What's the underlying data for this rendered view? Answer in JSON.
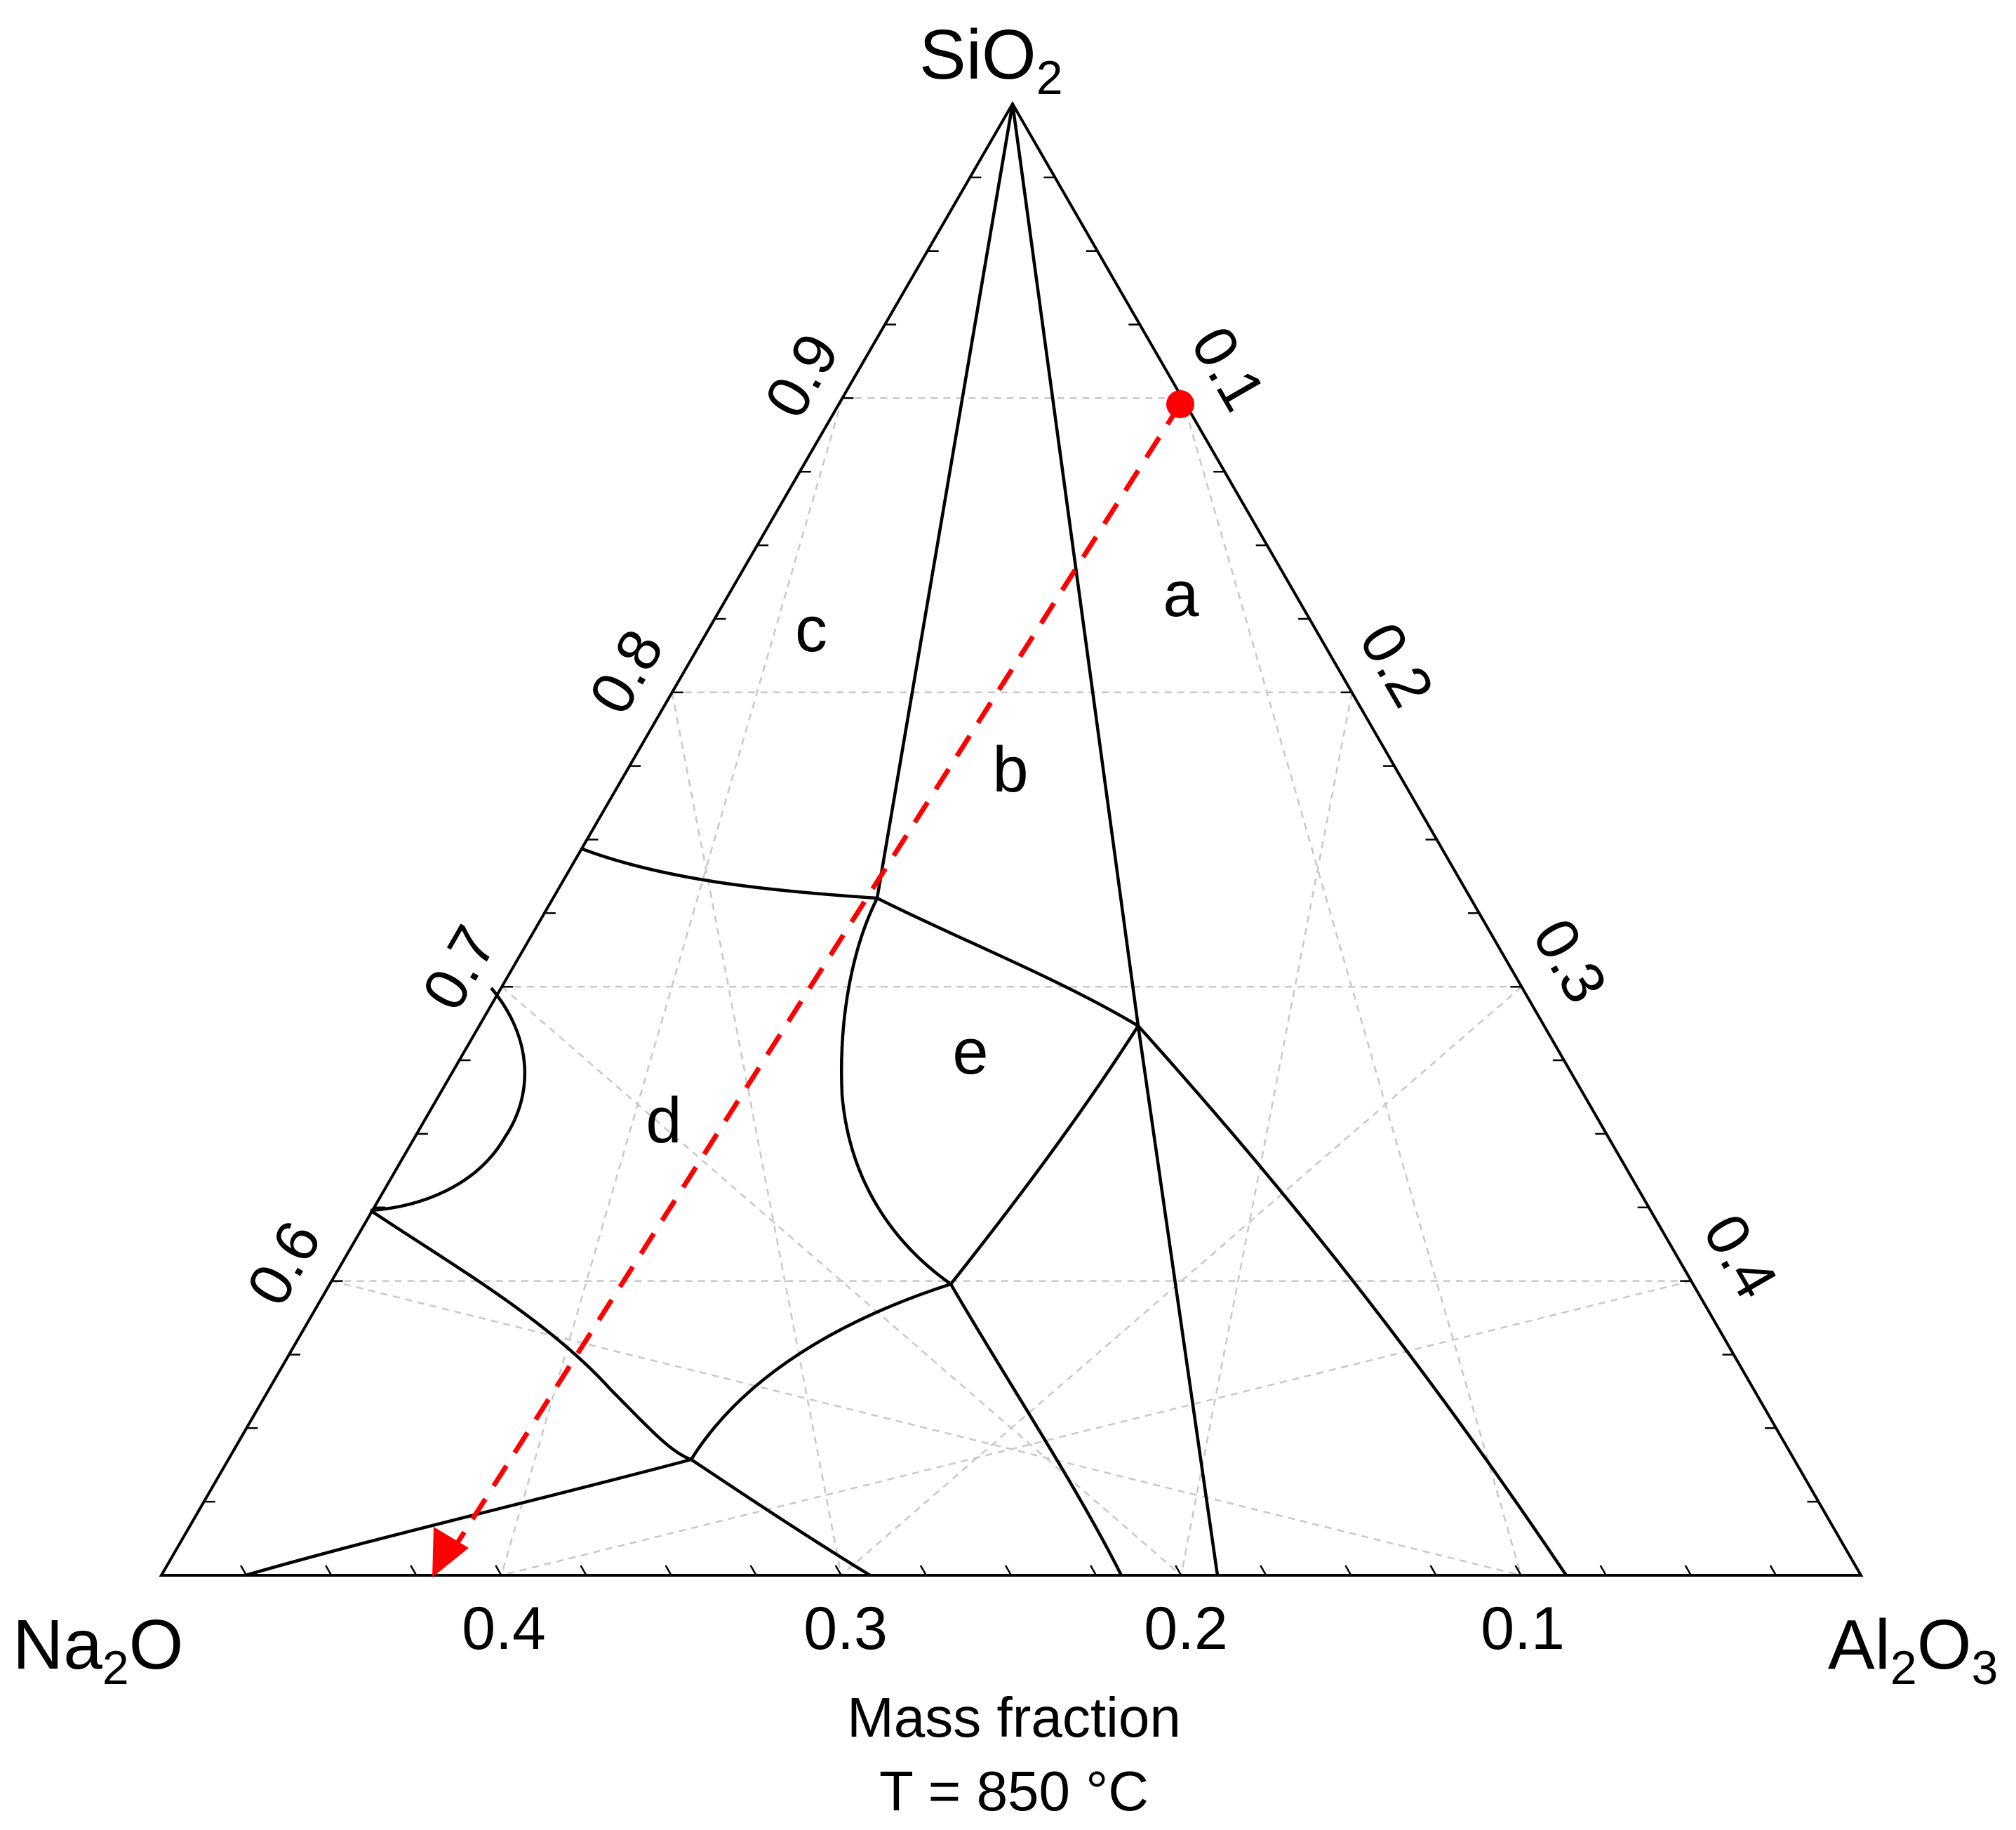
{
  "vertices": {
    "top": {
      "main": "SiO",
      "sub": "2",
      "tail": ""
    },
    "left": {
      "main": "Na",
      "sub": "2",
      "tail": "O"
    },
    "right": {
      "main": "Al",
      "sub": "2",
      "tail": "O",
      "sub2": "3"
    }
  },
  "left_edge_ticks": [
    "0.9",
    "0.8",
    "0.7",
    "0.6"
  ],
  "right_edge_ticks": [
    "0.1",
    "0.2",
    "0.3",
    "0.4"
  ],
  "bottom_edge_ticks": [
    "0.4",
    "0.3",
    "0.2",
    "0.1"
  ],
  "regions": [
    "a",
    "b",
    "c",
    "d",
    "e"
  ],
  "footer": {
    "line1": "Mass fraction",
    "line2": "T = 850 °C"
  },
  "colors": {
    "path": "#ff0000",
    "grid": "#c8c8c8",
    "boundary": "#000000"
  },
  "chart_data": {
    "type": "ternary",
    "components": {
      "top": "SiO2",
      "left": "Na2O",
      "right": "Al2O3"
    },
    "axis_range": {
      "SiO2": [
        0.5,
        1.0
      ],
      "Na2O": [
        0,
        0.5
      ],
      "Al2O3": [
        0,
        0.5
      ]
    },
    "grid_step": 0.1,
    "composition_path": {
      "start": {
        "Al2O3": 0.1,
        "SiO2": 0.9,
        "Na2O": 0.0
      },
      "end": {
        "Al2O3": 0.08,
        "SiO2": 0.5,
        "Na2O": 0.42
      }
    }
  }
}
